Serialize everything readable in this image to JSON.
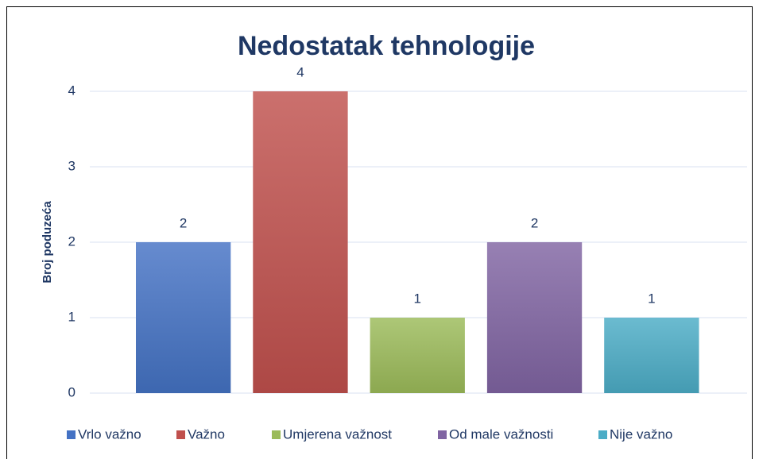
{
  "chart_data": {
    "type": "bar",
    "title": "Nedostatak tehnologije",
    "ylabel": "Broj poduzeća",
    "categories": [
      "Vrlo važno",
      "Važno",
      "Umjerena važnost",
      "Od male važnosti",
      "Nije važno"
    ],
    "values": [
      2,
      4,
      1,
      2,
      1
    ],
    "colors": [
      "#4472c4",
      "#c0504d",
      "#9bbb59",
      "#8064a2",
      "#4bacc6"
    ],
    "ylim": [
      0,
      4
    ],
    "yticks": [
      0,
      1,
      2,
      3,
      4
    ],
    "grid": true,
    "legend": "bottom"
  }
}
